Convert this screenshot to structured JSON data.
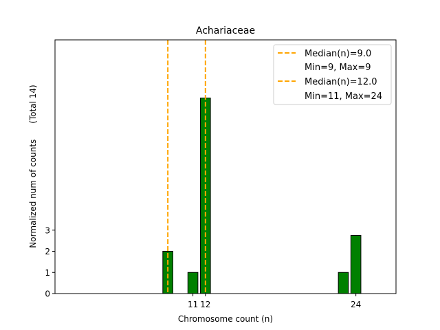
{
  "chart_data": {
    "type": "bar",
    "title": "Achariaceae",
    "xlabel": "Chromosome count (n)",
    "ylabel": "Normalized num of counts      (Total 14)",
    "xlim": [
      0,
      27.2
    ],
    "ylim": [
      0,
      12.0
    ],
    "bar_width": 0.8,
    "x_ticks": [
      {
        "value": 11,
        "label": "11"
      },
      {
        "value": 12,
        "label": "12"
      },
      {
        "value": 24,
        "label": "24"
      }
    ],
    "y_ticks": [
      0,
      1,
      2,
      3
    ],
    "bar_color": "#008000",
    "bar_edge_color": "#000000",
    "bars": [
      {
        "x": 9,
        "value": 2.0
      },
      {
        "x": 11,
        "value": 1.0
      },
      {
        "x": 12,
        "value": 9.25
      },
      {
        "x": 23,
        "value": 1.0
      },
      {
        "x": 24,
        "value": 2.75
      }
    ],
    "median_lines": [
      {
        "x": 9.0,
        "color": "#FFA500",
        "label": "Median(n)=9.0",
        "sublabel": "Min=9, Max=9"
      },
      {
        "x": 12.0,
        "color": "#FFA500",
        "label": "Median(n)=12.0",
        "sublabel": "Min=11, Max=24"
      }
    ],
    "legend_position": "top-right"
  }
}
